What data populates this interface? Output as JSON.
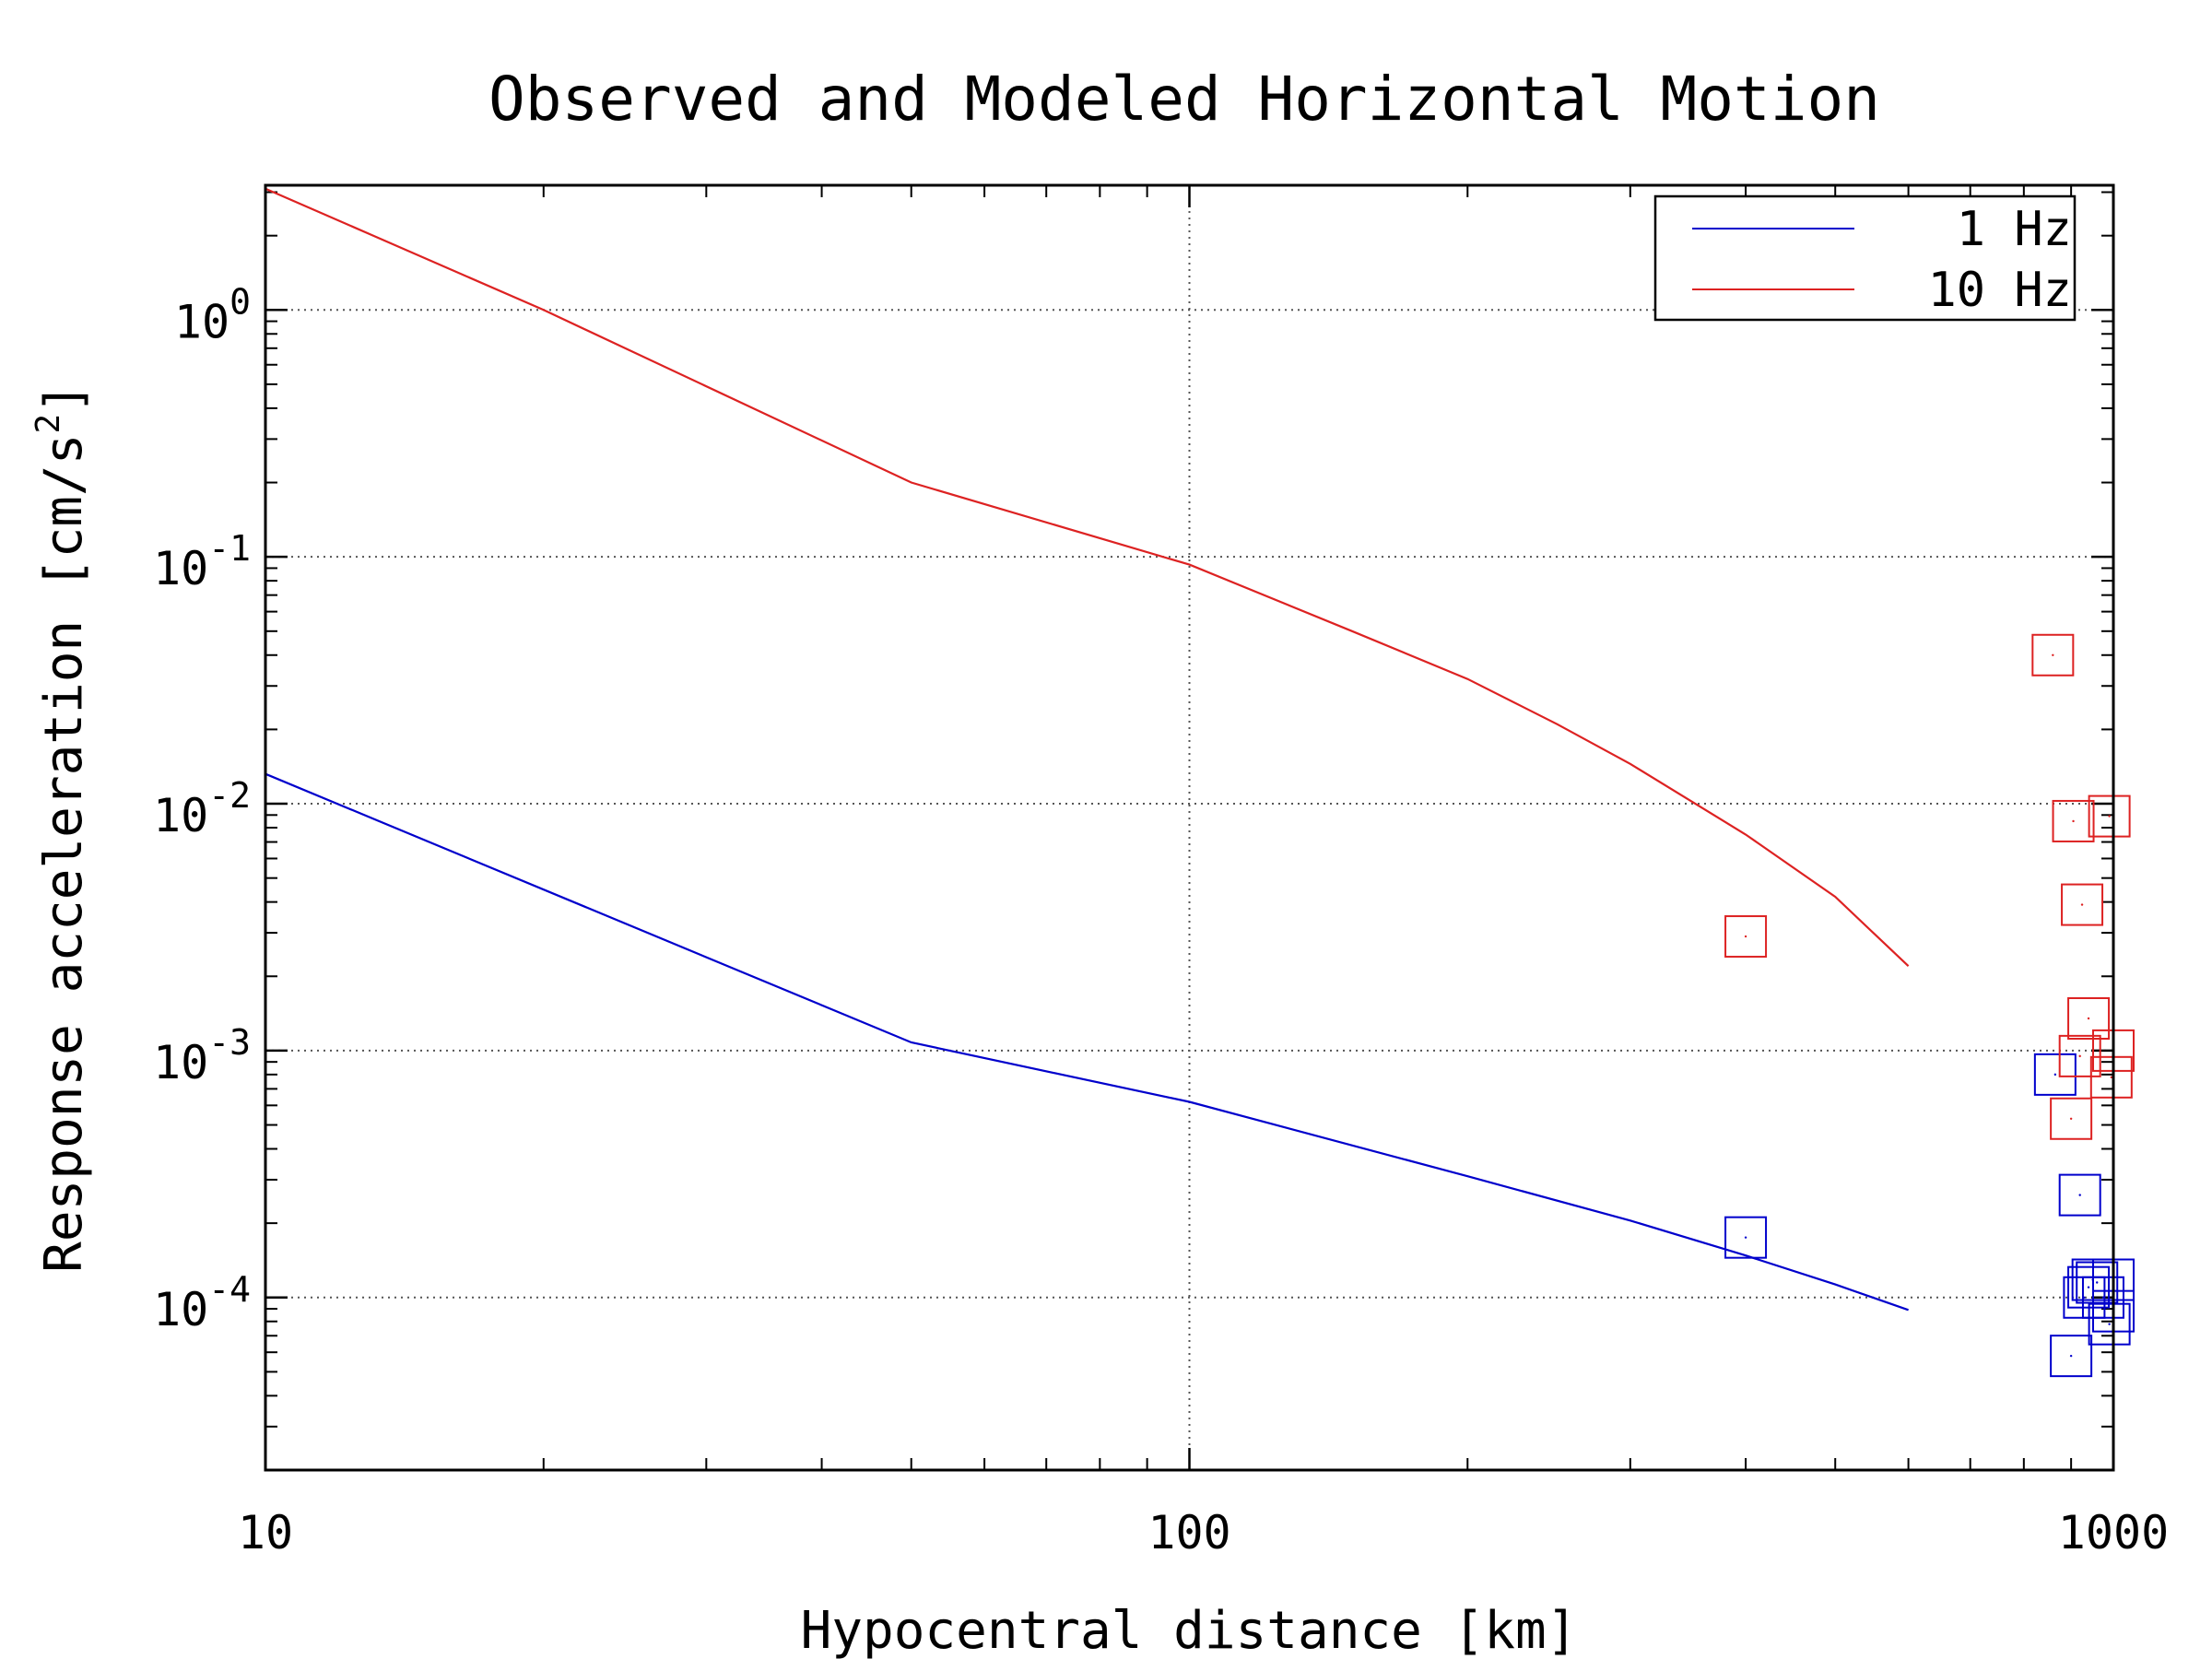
{
  "chart_data": {
    "type": "scatter",
    "title": "Observed and Modeled Horizontal Motion",
    "xlabel": "Hypocentral distance [km]",
    "ylabel": "Response acceleration [cm/s^2]",
    "ylabel_parts": {
      "main": "Response acceleration [cm/s",
      "sup": "2",
      "close": "]"
    },
    "xscale": "log",
    "yscale": "log",
    "xlim": [
      10,
      1000
    ],
    "ylim": [
      2e-05,
      3.2
    ],
    "grid": true,
    "legend_position": "top-right",
    "x_ticks": [
      {
        "value": 10,
        "label": "10"
      },
      {
        "value": 100,
        "label": "100"
      },
      {
        "value": 1000,
        "label": "1000"
      }
    ],
    "y_ticks": [
      {
        "value": 1,
        "base": "10",
        "exp": "0"
      },
      {
        "value": 0.1,
        "base": "10",
        "exp": "-1"
      },
      {
        "value": 0.01,
        "base": "10",
        "exp": "-2"
      },
      {
        "value": 0.001,
        "base": "10",
        "exp": "-3"
      },
      {
        "value": 0.0001,
        "base": "10",
        "exp": "-4"
      }
    ],
    "series": [
      {
        "name": "1 Hz",
        "color": "#0000cc",
        "model": {
          "x": [
            10,
            50,
            100,
            200,
            300,
            400,
            500,
            600
          ],
          "y": [
            0.0132,
            0.00108,
            0.00062,
            0.00031,
            0.000205,
            0.000148,
            0.000113,
            8.9e-05
          ]
        },
        "observed": {
          "x": [
            400,
            865,
            900,
            920,
            930,
            940,
            950,
            960,
            975,
            990,
            1000,
            1000
          ],
          "y": [
            0.000175,
            0.0008,
            5.8e-05,
            0.00026,
            0.0001,
            0.00011,
            0.000118,
            0.000115,
            0.0001,
            7.8e-05,
            8.8e-05,
            0.000118
          ]
        }
      },
      {
        "name": "10 Hz",
        "color": "#dd2222",
        "model": {
          "x": [
            10,
            20,
            50,
            100,
            150,
            200,
            250,
            300,
            400,
            500,
            600
          ],
          "y": [
            3.1,
            1.0,
            0.2,
            0.093,
            0.05,
            0.032,
            0.021,
            0.0145,
            0.0075,
            0.0042,
            0.0022
          ]
        },
        "observed": {
          "x": [
            400,
            860,
            900,
            905,
            920,
            925,
            940,
            990,
            995,
            1000
          ],
          "y": [
            0.0029,
            0.04,
            0.00053,
            0.0085,
            0.00095,
            0.0039,
            0.00135,
            0.0089,
            0.00078,
            0.001
          ]
        }
      }
    ]
  }
}
